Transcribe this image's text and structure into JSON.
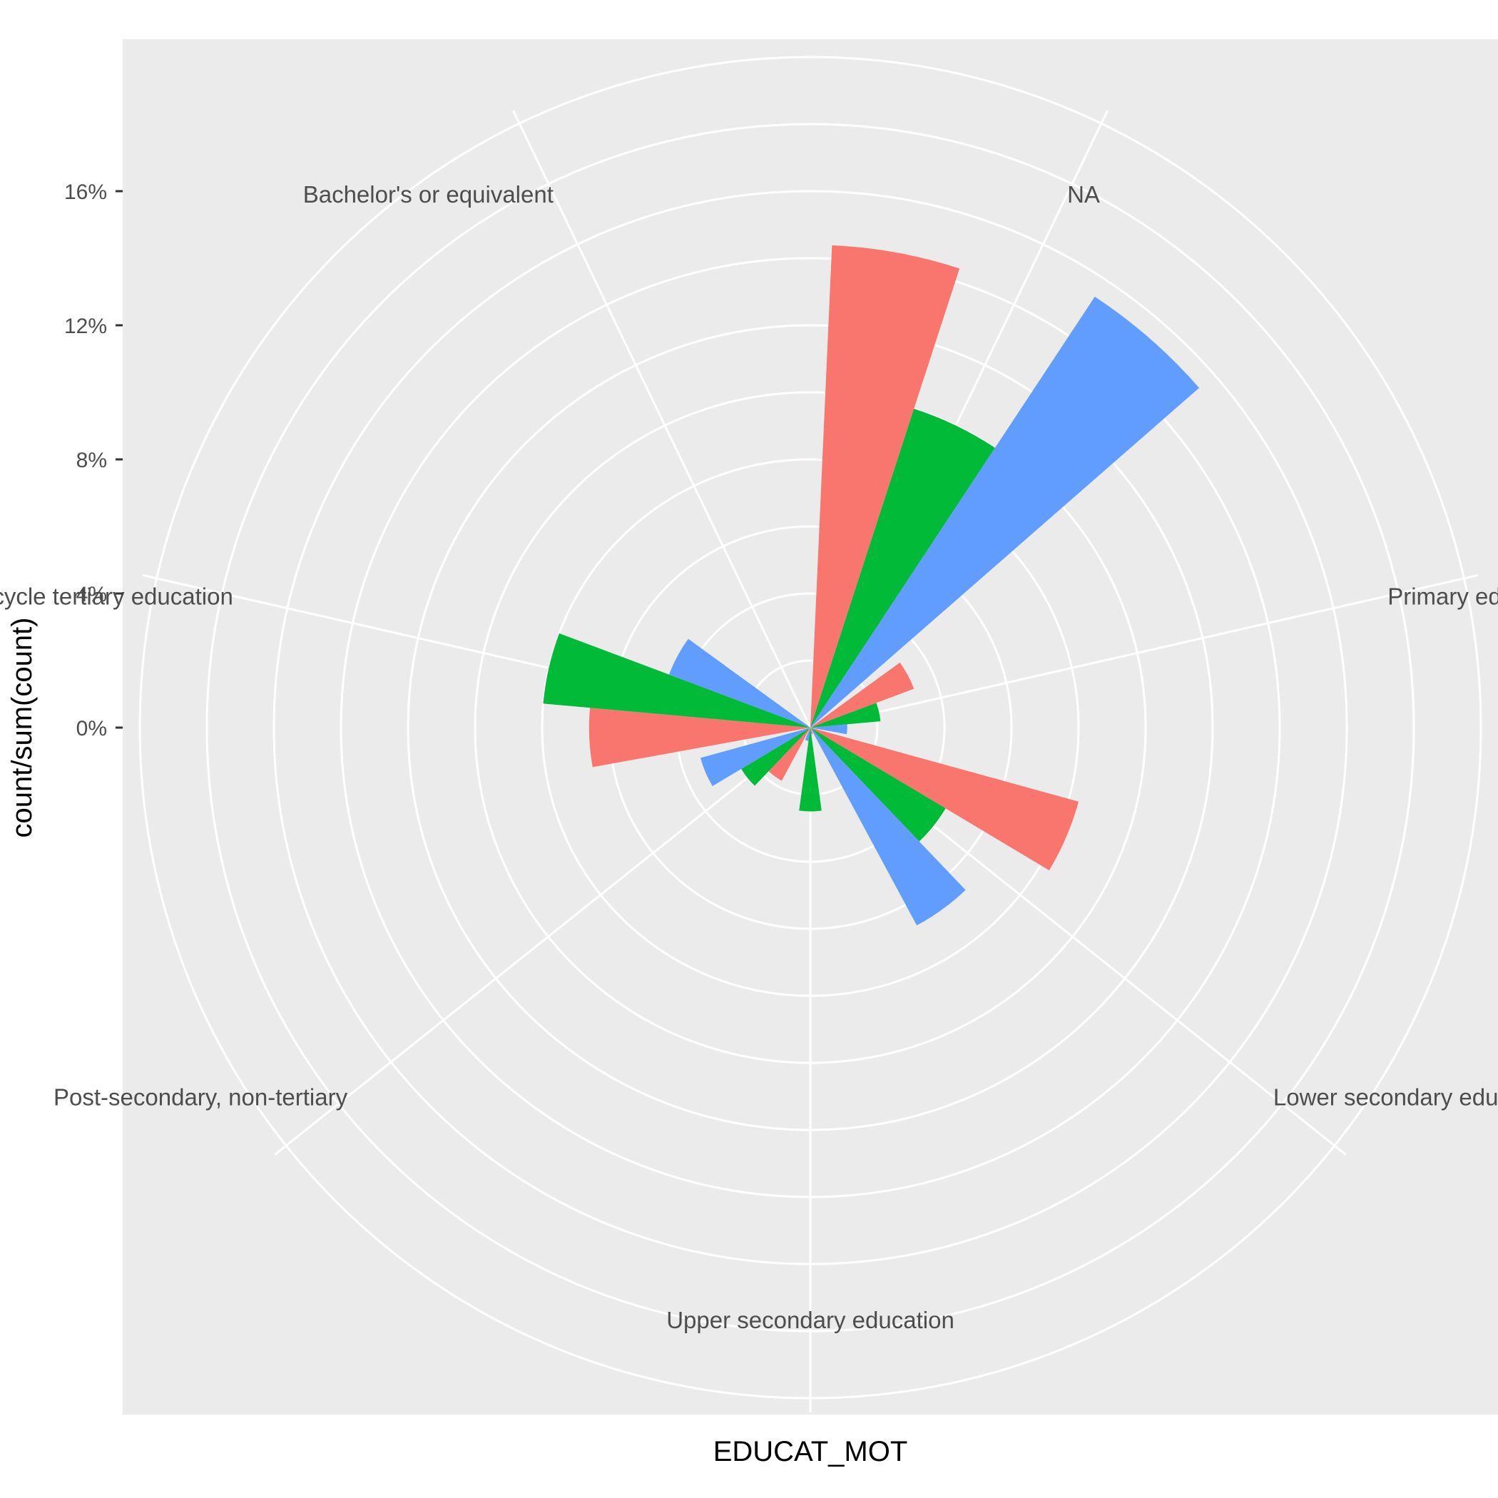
{
  "chart_data": {
    "type": "bar",
    "coord": "polar",
    "xlabel": "EDUCAT_MOT",
    "ylabel": "count/sum(count)",
    "y_ticks": [
      0,
      4,
      8,
      12,
      16
    ],
    "y_tick_labels": [
      "0%",
      "4%",
      "8%",
      "12%",
      "16%"
    ],
    "y_unit": "%",
    "categories": [
      "NA",
      "Primary education or less",
      "Lower secondary education",
      "Upper secondary education",
      "Post-secondary, non-tertiary",
      "Short-cycle tertiary education",
      "Bachelor's or equivalent"
    ],
    "series_colors": [
      "#F8766D",
      "#00BA38",
      "#619CFF"
    ],
    "values": [
      [
        14.4,
        10.0,
        15.4
      ],
      [
        3.3,
        2.1,
        1.1
      ],
      [
        8.3,
        4.7,
        6.7
      ],
      [
        0.2,
        2.5,
        0.4
      ],
      [
        1.8,
        2.4,
        3.4
      ],
      [
        6.6,
        8.0,
        4.5
      ],
      [
        0,
        0,
        0
      ]
    ],
    "grid": true
  }
}
